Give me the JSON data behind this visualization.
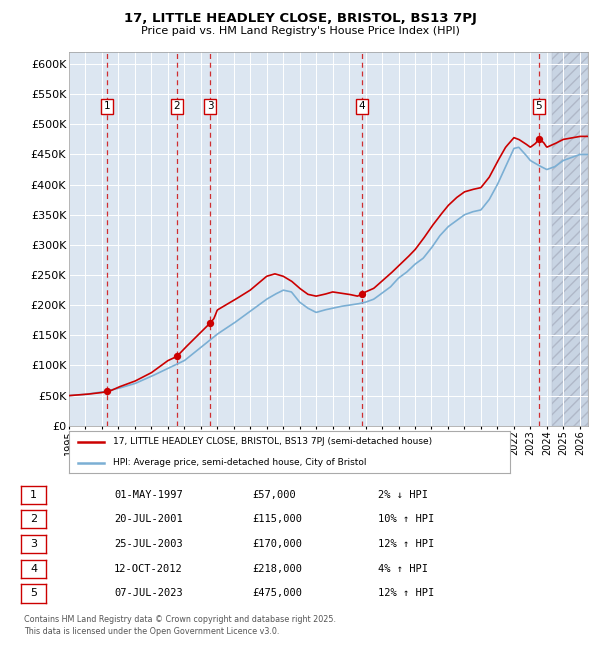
{
  "title_line1": "17, LITTLE HEADLEY CLOSE, BRISTOL, BS13 7PJ",
  "title_line2": "Price paid vs. HM Land Registry's House Price Index (HPI)",
  "ylim": [
    0,
    620000
  ],
  "yticks": [
    0,
    50000,
    100000,
    150000,
    200000,
    250000,
    300000,
    350000,
    400000,
    450000,
    500000,
    550000,
    600000
  ],
  "ytick_labels": [
    "£0",
    "£50K",
    "£100K",
    "£150K",
    "£200K",
    "£250K",
    "£300K",
    "£350K",
    "£400K",
    "£450K",
    "£500K",
    "£550K",
    "£600K"
  ],
  "xlim_start": 1995.0,
  "xlim_end": 2026.5,
  "xtick_years": [
    1995,
    1996,
    1997,
    1998,
    1999,
    2000,
    2001,
    2002,
    2003,
    2004,
    2005,
    2006,
    2007,
    2008,
    2009,
    2010,
    2011,
    2012,
    2013,
    2014,
    2015,
    2016,
    2017,
    2018,
    2019,
    2020,
    2021,
    2022,
    2023,
    2024,
    2025,
    2026
  ],
  "sale_dates": [
    1997.33,
    2001.55,
    2003.56,
    2012.78,
    2023.51
  ],
  "sale_prices": [
    57000,
    115000,
    170000,
    218000,
    475000
  ],
  "sale_labels": [
    "1",
    "2",
    "3",
    "4",
    "5"
  ],
  "legend_line1": "17, LITTLE HEADLEY CLOSE, BRISTOL, BS13 7PJ (semi-detached house)",
  "legend_line2": "HPI: Average price, semi-detached house, City of Bristol",
  "table_data": [
    [
      "1",
      "01-MAY-1997",
      "£57,000",
      "2% ↓ HPI"
    ],
    [
      "2",
      "20-JUL-2001",
      "£115,000",
      "10% ↑ HPI"
    ],
    [
      "3",
      "25-JUL-2003",
      "£170,000",
      "12% ↑ HPI"
    ],
    [
      "4",
      "12-OCT-2012",
      "£218,000",
      "4% ↑ HPI"
    ],
    [
      "5",
      "07-JUL-2023",
      "£475,000",
      "12% ↑ HPI"
    ]
  ],
  "footnote": "Contains HM Land Registry data © Crown copyright and database right 2025.\nThis data is licensed under the Open Government Licence v3.0.",
  "plot_bg_color": "#dce6f1",
  "line_color_red": "#cc0000",
  "line_color_blue": "#7bafd4",
  "hatch_start": 2024.3
}
